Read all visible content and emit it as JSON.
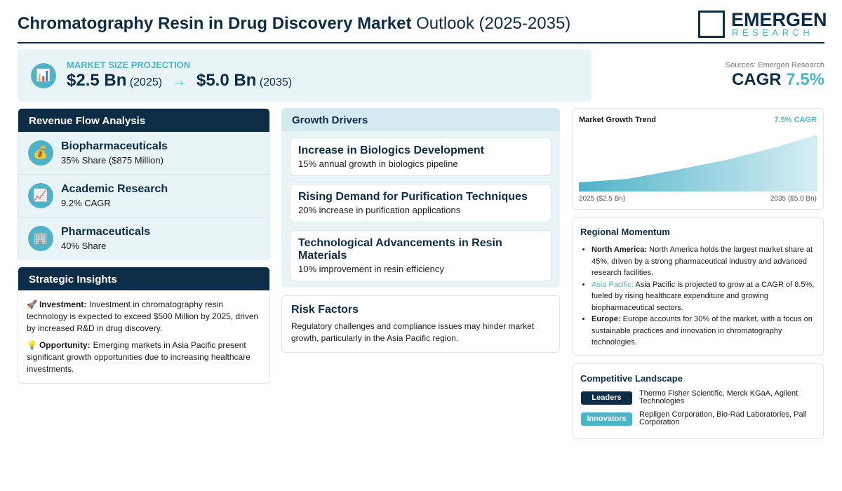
{
  "header": {
    "title_bold": "Chromatography Resin in Drug Discovery Market",
    "title_rest": "Outlook (2025-2035)",
    "logo_top": "EMERGEN",
    "logo_bottom": "RESEARCH"
  },
  "projection": {
    "icon": "📊",
    "label": "MARKET SIZE PROJECTION",
    "start_value": "$2.5 Bn",
    "start_year": "(2025)",
    "arrow": "→",
    "end_value": "$5.0 Bn",
    "end_year": "(2035)"
  },
  "sources": "Sources: Emergen Research",
  "cagr": {
    "label": "CAGR",
    "value": "7.5%"
  },
  "revenue_flow": {
    "title": "Revenue Flow Analysis",
    "items": [
      {
        "icon": "💰",
        "name": "Biopharmaceuticals",
        "detail": "35% Share ($875 Million)"
      },
      {
        "icon": "📈",
        "name": "Academic Research",
        "detail": "9.2% CAGR"
      },
      {
        "icon": "🏢",
        "name": "Pharmaceuticals",
        "detail": "40% Share"
      }
    ]
  },
  "strategic_insights": {
    "title": "Strategic Insights",
    "items": [
      {
        "icon": "🚀",
        "label": "Investment:",
        "text": "Investment in chromatography resin technology is expected to exceed $500 Million by 2025, driven by increased R&D in drug discovery."
      },
      {
        "icon": "💡",
        "label": "Opportunity:",
        "text": "Emerging markets in Asia Pacific present significant growth opportunities due to increasing healthcare investments."
      }
    ]
  },
  "growth_drivers": {
    "title": "Growth Drivers",
    "items": [
      {
        "title": "Increase in Biologics Development",
        "detail": "15% annual growth in biologics pipeline"
      },
      {
        "title": "Rising Demand for Purification Techniques",
        "detail": "20% increase in purification applications"
      },
      {
        "title": "Technological Advancements in Resin Materials",
        "detail": "10% improvement in resin efficiency"
      }
    ]
  },
  "risk_factors": {
    "title": "Risk Factors",
    "text": "Regulatory challenges and compliance issues may hinder market growth, particularly in the Asia Pacific region."
  },
  "trend": {
    "title": "Market Growth Trend",
    "badge": "7.5% CAGR",
    "start_label": "2025 ($2.5 Bn)",
    "end_label": "2035 ($5.0 Bn)"
  },
  "regional": {
    "title": "Regional Momentum",
    "items": [
      {
        "region": "North America:",
        "text": "North America holds the largest market share at 45%, driven by a strong pharmaceutical industry and advanced research facilities."
      },
      {
        "region": "Asia Pacific:",
        "text": "Asia Pacific is projected to grow at a CAGR of 8.5%, fueled by rising healthcare expenditure and growing biopharmaceutical sectors."
      },
      {
        "region": "Europe:",
        "text": "Europe accounts for 30% of the market, with a focus on sustainable practices and innovation in chromatography technologies."
      }
    ]
  },
  "competitive": {
    "title": "Competitive Landscape",
    "rows": [
      {
        "tag": "Leaders",
        "companies": "Thermo Fisher Scientific, Merck KGaA, Agilent Technologies"
      },
      {
        "tag": "Innovators",
        "companies": "Repligen Corporation, Bio-Rad Laboratories, Pall Corporation"
      }
    ]
  }
}
